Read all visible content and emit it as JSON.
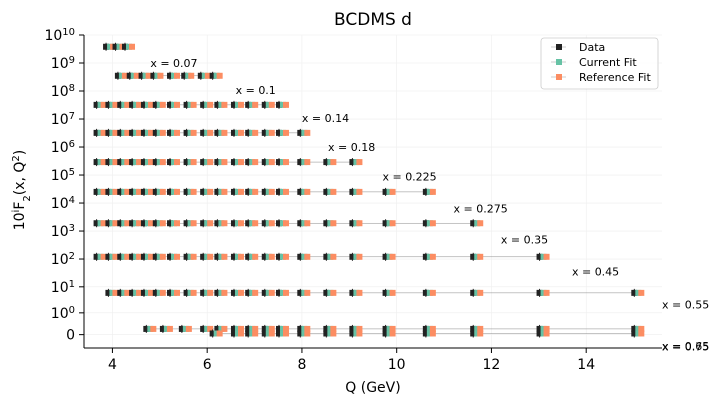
{
  "chart_data": {
    "type": "scatter",
    "title": "BCDMS d",
    "xlabel": "Q (GeV)",
    "ylabel": "10ⁱF₂(x, Q²)",
    "yscale": "symlog",
    "xlim": [
      3.4,
      15.6
    ],
    "ylim": [
      -0.4,
      10000000000
    ],
    "xticks": [
      4,
      6,
      8,
      10,
      12,
      14
    ],
    "yticks": [
      {
        "value": 0,
        "label": "0"
      },
      {
        "value": 1,
        "label": "10",
        "exp": "0"
      },
      {
        "value": 10,
        "label": "10",
        "exp": "1"
      },
      {
        "value": 100,
        "label": "10",
        "exp": "2"
      },
      {
        "value": 1000,
        "label": "10",
        "exp": "3"
      },
      {
        "value": 10000,
        "label": "10",
        "exp": "4"
      },
      {
        "value": 100000,
        "label": "10",
        "exp": "5"
      },
      {
        "value": 1000000,
        "label": "10",
        "exp": "6"
      },
      {
        "value": 10000000,
        "label": "10",
        "exp": "7"
      },
      {
        "value": 100000000,
        "label": "10",
        "exp": "8"
      },
      {
        "value": 1000000000,
        "label": "10",
        "exp": "9"
      },
      {
        "value": 10000000000,
        "label": "10",
        "exp": "10"
      }
    ],
    "grid": true,
    "legend": {
      "placement": "top-right",
      "entries": [
        "Data",
        "Current Fit",
        "Reference Fit"
      ]
    },
    "colors": {
      "data": "#222222",
      "current": "#66c2a5",
      "reference": "#fc8d62",
      "axis": "#000000",
      "grid": "#eeeeee",
      "fitline": "#888888"
    },
    "bins": [
      {
        "label": "x = 0.07",
        "y": 3800000000,
        "q": [
          3.95,
          4.15,
          4.35
        ],
        "label_q": 4.8,
        "label_y": 1000000000
      },
      {
        "label": "x = 0.1",
        "y": 350000000,
        "q": [
          4.2,
          4.45,
          4.7,
          4.95,
          5.3,
          5.6,
          5.95,
          6.2
        ],
        "label_q": 6.6,
        "label_y": 110000000
      },
      {
        "label": "x = 0.14",
        "y": 32000000,
        "q": [
          3.75,
          4.0,
          4.25,
          4.5,
          4.75,
          5.0,
          5.3,
          5.65,
          6.0,
          6.3,
          6.65,
          6.95,
          7.3,
          7.6
        ],
        "label_q": 8.0,
        "label_y": 11000000
      },
      {
        "label": "x = 0.18",
        "y": 3200000,
        "q": [
          3.75,
          4.0,
          4.25,
          4.5,
          4.75,
          5.0,
          5.3,
          5.65,
          6.0,
          6.3,
          6.65,
          6.95,
          7.3,
          7.6,
          8.05
        ],
        "label_q": 8.55,
        "label_y": 1000000
      },
      {
        "label": "x = 0.225",
        "y": 290000,
        "q": [
          3.75,
          4.0,
          4.25,
          4.5,
          4.75,
          5.0,
          5.3,
          5.65,
          6.0,
          6.3,
          6.65,
          6.95,
          7.3,
          7.6,
          8.05,
          8.6,
          9.15
        ],
        "label_q": 9.7,
        "label_y": 90000
      },
      {
        "label": "x = 0.275",
        "y": 25000,
        "q": [
          3.75,
          4.0,
          4.25,
          4.5,
          4.75,
          5.0,
          5.3,
          5.65,
          6.0,
          6.3,
          6.65,
          6.95,
          7.3,
          7.6,
          8.05,
          8.6,
          9.15,
          9.85,
          10.7
        ],
        "label_q": 11.2,
        "label_y": 6500
      },
      {
        "label": "x = 0.35",
        "y": 1900,
        "q": [
          3.75,
          4.0,
          4.25,
          4.5,
          4.75,
          5.0,
          5.3,
          5.65,
          6.0,
          6.3,
          6.65,
          6.95,
          7.3,
          7.6,
          8.05,
          8.6,
          9.15,
          9.85,
          10.7,
          11.7
        ],
        "label_q": 12.2,
        "label_y": 500
      },
      {
        "label": "x = 0.45",
        "y": 120,
        "q": [
          3.75,
          4.0,
          4.25,
          4.5,
          4.75,
          5.0,
          5.3,
          5.65,
          6.0,
          6.3,
          6.65,
          6.95,
          7.3,
          7.6,
          8.05,
          8.6,
          9.15,
          9.85,
          10.7,
          11.7,
          13.1
        ],
        "label_q": 13.7,
        "label_y": 35
      },
      {
        "label": "x = 0.55",
        "y": 6,
        "q": [
          4.0,
          4.25,
          4.5,
          4.75,
          5.0,
          5.3,
          5.65,
          6.0,
          6.3,
          6.65,
          6.95,
          7.3,
          7.6,
          8.05,
          8.6,
          9.15,
          9.85,
          10.7,
          11.7,
          13.1,
          15.1
        ],
        "label_q": 15.6,
        "label_y": 2.2
      },
      {
        "label": "x = 0.65",
        "y": 0.12,
        "q": [
          4.8,
          5.15,
          5.55,
          6.0,
          6.3,
          6.65,
          6.95,
          7.3,
          7.6,
          8.05,
          8.6,
          9.15,
          9.85,
          10.7,
          11.7,
          13.1,
          15.1
        ],
        "label_q": 15.6,
        "label_y": -0.3
      },
      {
        "label": "x = 0.75",
        "y": 0.02,
        "q": [
          6.2,
          6.65,
          6.95,
          7.3,
          7.6,
          8.05,
          8.6,
          9.15,
          9.85,
          10.7,
          11.7,
          13.1,
          15.1
        ],
        "label_q": 15.6,
        "label_y": -0.33
      }
    ]
  }
}
